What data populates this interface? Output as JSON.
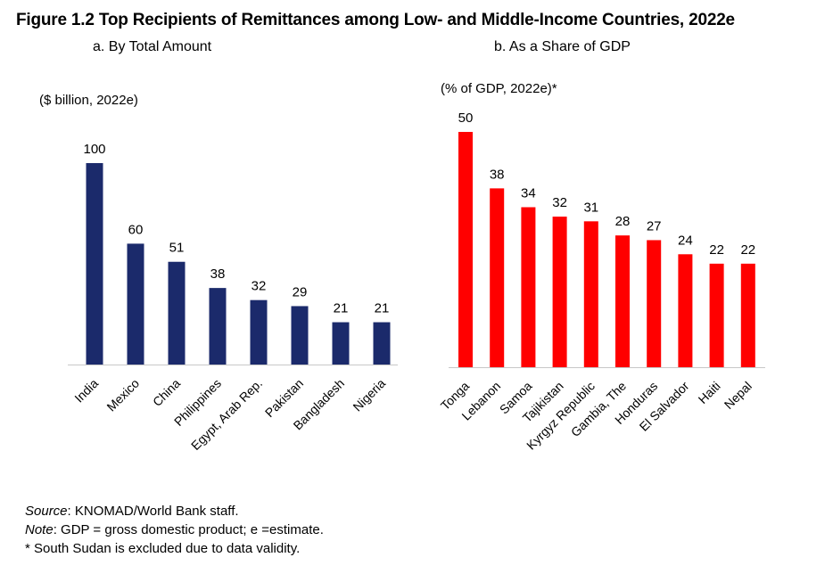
{
  "figure": {
    "title": "Figure 1.2 Top Recipients of Remittances among Low- and Middle-Income Countries, 2022e"
  },
  "chart_data": [
    {
      "type": "bar",
      "title": "a. By Total Amount",
      "unit_label": "($ billion, 2022e)",
      "color": "#1b2a6b",
      "categories": [
        "India",
        "Mexico",
        "China",
        "Philippines",
        "Egypt, Arab Rep.",
        "Pakistan",
        "Bangladesh",
        "Nigeria"
      ],
      "values": [
        100,
        60,
        51,
        38,
        32,
        29,
        21,
        21
      ],
      "ylim": [
        0,
        100
      ]
    },
    {
      "type": "bar",
      "title": "b. As a Share of GDP",
      "unit_label": "(% of GDP, 2022e)*",
      "color": "#ff0000",
      "categories": [
        "Tonga",
        "Lebanon",
        "Samoa",
        "Tajikistan",
        "Kyrgyz Republic",
        "Gambia, The",
        "Honduras",
        "El Salvador",
        "Haiti",
        "Nepal"
      ],
      "values": [
        50,
        38,
        34,
        32,
        31,
        28,
        27,
        24,
        22,
        22
      ],
      "ylim": [
        0,
        50
      ]
    }
  ],
  "notes": {
    "source_label": "Source",
    "source_text": ": KNOMAD/World Bank staff.",
    "note_label": "Note",
    "note_text": ": GDP = gross domestic product; e =estimate.",
    "footnote": "* South Sudan is excluded due to data validity."
  }
}
